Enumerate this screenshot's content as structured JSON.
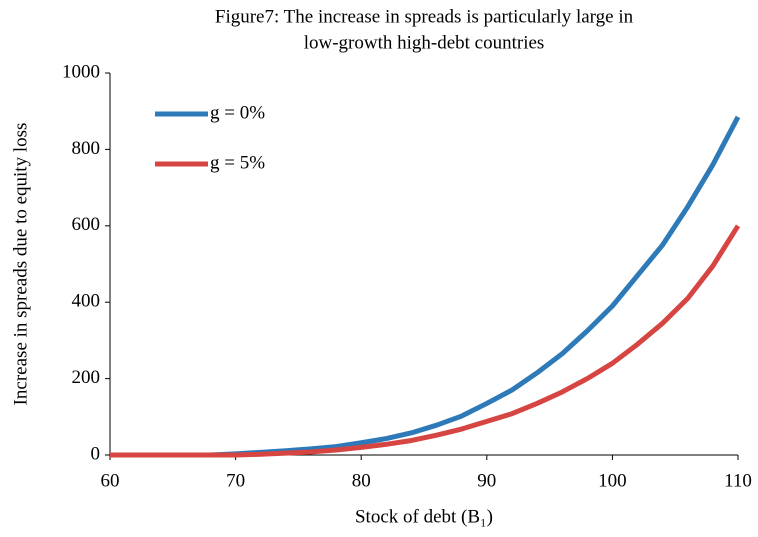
{
  "chart_data": {
    "type": "line",
    "title": [
      "Figure7: The increase in spreads is particularly large in",
      "low-growth high-debt countries"
    ],
    "x_label": "Stock of debt (B₁)",
    "y_label": "Increase in spreads  due to equity loss",
    "x": [
      60,
      62,
      64,
      66,
      68,
      70,
      72,
      74,
      76,
      78,
      80,
      82,
      84,
      86,
      88,
      90,
      92,
      94,
      96,
      98,
      100,
      102,
      104,
      106,
      108,
      110
    ],
    "series": [
      {
        "name": "g = 0%",
        "color": "#2e7ab8",
        "values": [
          0,
          0,
          0,
          0,
          0,
          3,
          7,
          11,
          16,
          22,
          32,
          43,
          58,
          78,
          102,
          135,
          170,
          215,
          265,
          325,
          390,
          470,
          550,
          650,
          760,
          885
        ]
      },
      {
        "name": "g = 5%",
        "color": "#d64541",
        "values": [
          0,
          0,
          0,
          0,
          0,
          0,
          2,
          5,
          8,
          13,
          20,
          28,
          38,
          52,
          68,
          88,
          108,
          135,
          165,
          200,
          240,
          290,
          345,
          410,
          495,
          600
        ]
      }
    ],
    "xlim": [
      60,
      110
    ],
    "xticks": [
      60,
      70,
      80,
      90,
      100,
      110
    ],
    "ylim": [
      0,
      1000
    ],
    "yticks": [
      0,
      200,
      400,
      600,
      800,
      1000
    ],
    "grid": false,
    "legend": "upper left"
  }
}
